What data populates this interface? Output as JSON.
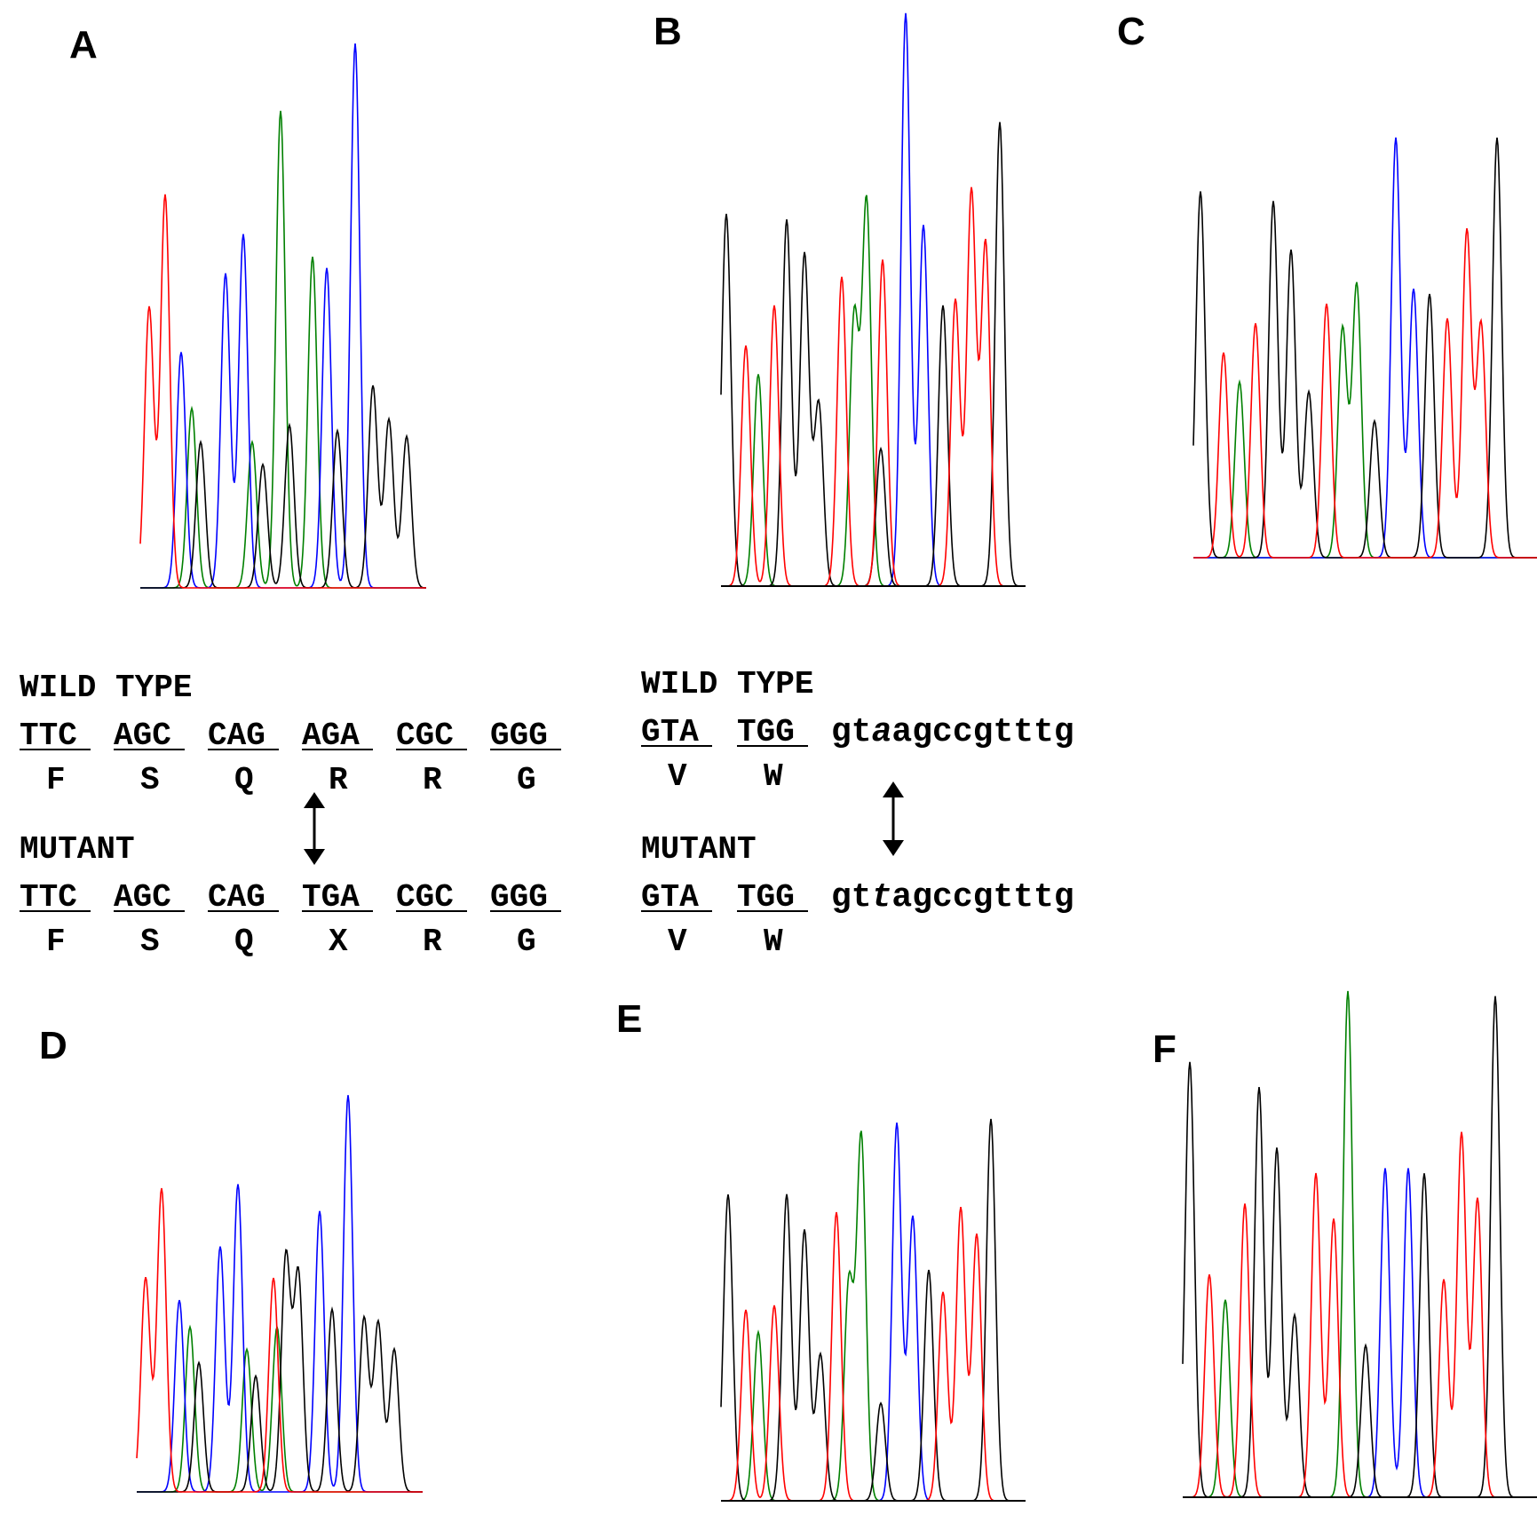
{
  "colors": {
    "A": "#008000",
    "C": "#0000ff",
    "G": "#000000",
    "T": "#ff0000"
  },
  "panel_letters": [
    "A",
    "B",
    "C",
    "D",
    "E",
    "F"
  ],
  "left_annotation": {
    "wild_type_heading": "WILD TYPE",
    "wild_type_codons": [
      "TTC",
      "AGC",
      "CAG",
      "AGA",
      "CGC",
      "GGG"
    ],
    "wild_type_aa": [
      "F",
      "S",
      "Q",
      "R",
      "R",
      "G"
    ],
    "mutant_heading": "MUTANT",
    "mutant_codons": [
      "TTC",
      "AGC",
      "CAG",
      "TGA",
      "CGC",
      "GGG"
    ],
    "mutant_aa": [
      "F",
      "S",
      "Q",
      "X",
      "R",
      "G"
    ]
  },
  "right_annotation": {
    "wild_type_heading": "WILD TYPE",
    "wild_type_codons": [
      "GTA",
      "TGG"
    ],
    "wild_type_intron": {
      "pre": "gt",
      "changed": "a",
      "post": "agccgtttg"
    },
    "wild_type_aa": [
      "V",
      "W"
    ],
    "mutant_heading": "MUTANT",
    "mutant_codons": [
      "GTA",
      "TGG"
    ],
    "mutant_intron": {
      "pre": "gt",
      "changed": "t",
      "post": "agccgtttg"
    },
    "mutant_aa": [
      "V",
      "W"
    ]
  },
  "chromatograms": {
    "A": [
      [
        "T",
        10,
        0.5
      ],
      [
        "T",
        28,
        0.7
      ],
      [
        "C",
        46,
        0.42
      ],
      [
        "A",
        58,
        0.32
      ],
      [
        "G",
        68,
        0.26
      ],
      [
        "C",
        96,
        0.56
      ],
      [
        "C",
        116,
        0.63
      ],
      [
        "A",
        126,
        0.26
      ],
      [
        "G",
        138,
        0.22
      ],
      [
        "A",
        158,
        0.85
      ],
      [
        "G",
        168,
        0.29
      ],
      [
        "A",
        194,
        0.59
      ],
      [
        "C",
        210,
        0.57
      ],
      [
        "G",
        222,
        0.28
      ],
      [
        "C",
        242,
        0.97
      ],
      [
        "G",
        262,
        0.36
      ],
      [
        "G",
        280,
        0.3
      ],
      [
        "G",
        300,
        0.27
      ]
    ],
    "B": [
      [
        "G",
        6,
        0.65
      ],
      [
        "T",
        28,
        0.42
      ],
      [
        "A",
        42,
        0.37
      ],
      [
        "T",
        60,
        0.49
      ],
      [
        "G",
        74,
        0.64
      ],
      [
        "G",
        94,
        0.58
      ],
      [
        "G",
        110,
        0.32
      ],
      [
        "T",
        136,
        0.54
      ],
      [
        "A",
        150,
        0.47
      ],
      [
        "A",
        164,
        0.67
      ],
      [
        "T",
        182,
        0.57
      ],
      [
        "G",
        180,
        0.24
      ],
      [
        "C",
        208,
        1.0
      ],
      [
        "C",
        228,
        0.63
      ],
      [
        "G",
        250,
        0.49
      ],
      [
        "T",
        264,
        0.5
      ],
      [
        "T",
        282,
        0.69
      ],
      [
        "T",
        298,
        0.6
      ],
      [
        "G",
        314,
        0.81
      ]
    ],
    "C": [
      [
        "G",
        8,
        0.75
      ],
      [
        "T",
        34,
        0.42
      ],
      [
        "A",
        52,
        0.36
      ],
      [
        "T",
        70,
        0.48
      ],
      [
        "G",
        90,
        0.73
      ],
      [
        "G",
        110,
        0.63
      ],
      [
        "G",
        130,
        0.34
      ],
      [
        "T",
        150,
        0.52
      ],
      [
        "A",
        168,
        0.47
      ],
      [
        "A",
        184,
        0.56
      ],
      [
        "G",
        204,
        0.28
      ],
      [
        "C",
        228,
        0.86
      ],
      [
        "C",
        248,
        0.55
      ],
      [
        "G",
        266,
        0.54
      ],
      [
        "T",
        286,
        0.49
      ],
      [
        "T",
        308,
        0.67
      ],
      [
        "T",
        324,
        0.48
      ],
      [
        "G",
        342,
        0.86
      ]
    ],
    "D": [
      [
        "T",
        10,
        0.48
      ],
      [
        "T",
        28,
        0.68
      ],
      [
        "C",
        48,
        0.43
      ],
      [
        "A",
        60,
        0.37
      ],
      [
        "G",
        70,
        0.29
      ],
      [
        "C",
        94,
        0.55
      ],
      [
        "C",
        114,
        0.69
      ],
      [
        "A",
        124,
        0.32
      ],
      [
        "G",
        134,
        0.26
      ],
      [
        "T",
        154,
        0.48
      ],
      [
        "A",
        158,
        0.37
      ],
      [
        "G",
        168,
        0.53
      ],
      [
        "G",
        182,
        0.49
      ],
      [
        "C",
        206,
        0.63
      ],
      [
        "G",
        220,
        0.41
      ],
      [
        "C",
        238,
        0.89
      ],
      [
        "G",
        256,
        0.39
      ],
      [
        "G",
        272,
        0.38
      ],
      [
        "G",
        290,
        0.32
      ]
    ],
    "E": [
      [
        "G",
        8,
        0.69
      ],
      [
        "T",
        28,
        0.43
      ],
      [
        "A",
        42,
        0.38
      ],
      [
        "T",
        60,
        0.44
      ],
      [
        "G",
        74,
        0.69
      ],
      [
        "G",
        94,
        0.61
      ],
      [
        "G",
        112,
        0.33
      ],
      [
        "T",
        130,
        0.65
      ],
      [
        "A",
        144,
        0.49
      ],
      [
        "A",
        158,
        0.82
      ],
      [
        "G",
        180,
        0.22
      ],
      [
        "C",
        198,
        0.85
      ],
      [
        "C",
        216,
        0.64
      ],
      [
        "G",
        234,
        0.52
      ],
      [
        "T",
        250,
        0.47
      ],
      [
        "T",
        270,
        0.66
      ],
      [
        "T",
        288,
        0.6
      ],
      [
        "G",
        304,
        0.86
      ]
    ],
    "F": [
      [
        "G",
        8,
        0.86
      ],
      [
        "T",
        30,
        0.44
      ],
      [
        "A",
        48,
        0.39
      ],
      [
        "T",
        70,
        0.58
      ],
      [
        "G",
        86,
        0.81
      ],
      [
        "G",
        106,
        0.69
      ],
      [
        "G",
        126,
        0.36
      ],
      [
        "T",
        150,
        0.64
      ],
      [
        "T",
        170,
        0.55
      ],
      [
        "A",
        186,
        1.0
      ],
      [
        "G",
        206,
        0.3
      ],
      [
        "C",
        228,
        0.65
      ],
      [
        "C",
        254,
        0.65
      ],
      [
        "G",
        272,
        0.64
      ],
      [
        "T",
        294,
        0.43
      ],
      [
        "T",
        314,
        0.72
      ],
      [
        "T",
        332,
        0.59
      ],
      [
        "G",
        352,
        0.99
      ]
    ]
  }
}
